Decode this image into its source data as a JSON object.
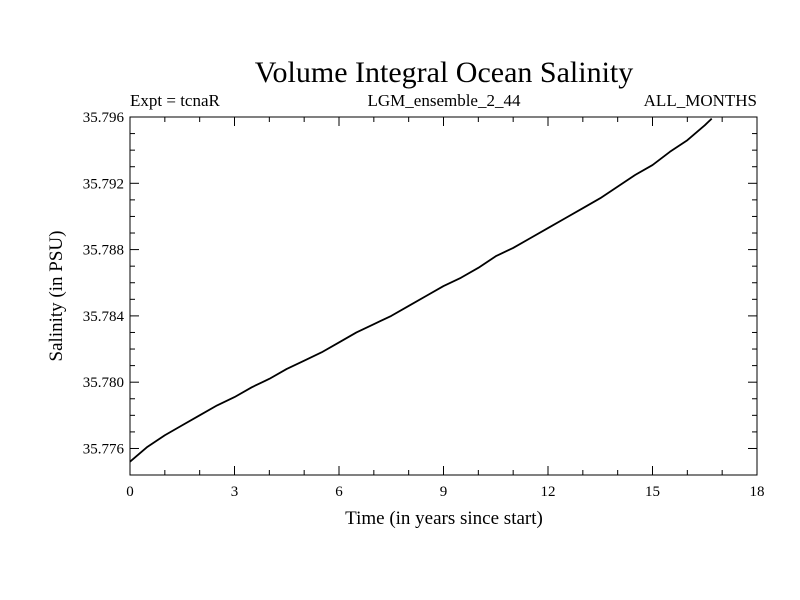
{
  "chart_data": {
    "type": "line",
    "title": "Volume Integral Ocean Salinity",
    "subtitle_left": "Expt = tcnaR",
    "subtitle_center": "LGM_ensemble_2_44",
    "subtitle_right": "ALL_MONTHS",
    "xlabel": "Time (in years since start)",
    "ylabel": "Salinity (in PSU)",
    "xlim": [
      0,
      18
    ],
    "ylim": [
      35.7744,
      35.796
    ],
    "xticks": [
      "0",
      "3",
      "6",
      "9",
      "12",
      "15",
      "18"
    ],
    "yticks": [
      "35.776",
      "35.780",
      "35.784",
      "35.788",
      "35.792",
      "35.796"
    ],
    "series": [
      {
        "name": "salinity",
        "x": [
          0,
          0.5,
          1,
          1.5,
          2,
          2.5,
          3,
          3.5,
          4,
          4.5,
          5,
          5.5,
          6,
          6.5,
          7,
          7.5,
          8,
          8.5,
          9,
          9.5,
          10,
          10.5,
          11,
          11.5,
          12,
          12.5,
          13,
          13.5,
          14,
          14.5,
          15,
          15.5,
          16,
          16.5,
          16.7
        ],
        "y": [
          35.7752,
          35.7761,
          35.7768,
          35.7774,
          35.778,
          35.7786,
          35.7791,
          35.7797,
          35.7802,
          35.7808,
          35.7813,
          35.7818,
          35.7824,
          35.783,
          35.7835,
          35.784,
          35.7846,
          35.7852,
          35.7858,
          35.7863,
          35.7869,
          35.7876,
          35.7881,
          35.7887,
          35.7893,
          35.7899,
          35.7905,
          35.7911,
          35.7918,
          35.7925,
          35.7931,
          35.7939,
          35.7946,
          35.7955,
          35.7959
        ]
      }
    ]
  }
}
